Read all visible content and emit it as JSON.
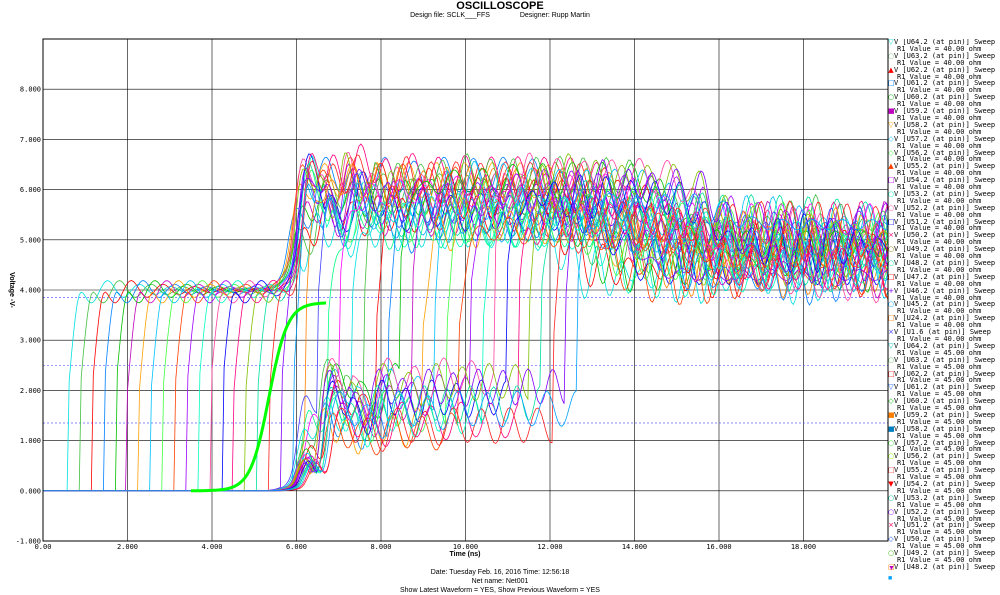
{
  "header": {
    "title": "OSCILLOSCOPE",
    "design_file": "Design file: SCLK___FFS",
    "designer": "Designer: Rupp Martin"
  },
  "footer": {
    "date": "Date: Tuesday Feb. 16, 2016   Time: 12:56:18",
    "net": "Net name: Net001",
    "options": "Show Latest Waveform = YES,   Show Previous Waveform = YES"
  },
  "chart_data": {
    "type": "line",
    "xlabel": "Time (ns)",
    "ylabel": "Voltage -V-",
    "xlim": [
      0,
      20
    ],
    "ylim": [
      -1,
      9
    ],
    "x_ticks": [
      "0.00",
      "2.000",
      "4.000",
      "6.000",
      "8.000",
      "10.000",
      "12.000",
      "14.000",
      "16.000",
      "18.000"
    ],
    "y_ticks": [
      "-1.000",
      "0.000",
      "1.000",
      "2.000",
      "3.000",
      "4.000",
      "5.000",
      "6.000",
      "7.000",
      "8.000"
    ],
    "grid": true,
    "legend_position": "right",
    "reference_levels_dashed": [
      3.85,
      2.5,
      1.35
    ],
    "legend": [
      {
        "name": "V [U64.2 (at pin)] Sweep",
        "sub": "R1 Value = 40.00 ohm",
        "marker": "▽",
        "color": "#00e0e0"
      },
      {
        "name": "V [U63.2 (at pin)] Sweep",
        "sub": "R1 Value = 40.00 ohm",
        "marker": "○",
        "color": "#80c080"
      },
      {
        "name": "V [U62.2 (at pin)] Sweep",
        "sub": "R1 Value = 40.00 ohm",
        "marker": "▲",
        "color": "#ff0000"
      },
      {
        "name": "V [U61.2 (at pin)] Sweep",
        "sub": "R1 Value = 40.00 ohm",
        "marker": "□",
        "color": "#0080ff"
      },
      {
        "name": "V [U60.2 (at pin)] Sweep",
        "sub": "R1 Value = 40.00 ohm",
        "marker": "○",
        "color": "#00c000"
      },
      {
        "name": "V [U59.2 (at pin)] Sweep",
        "sub": "R1 Value = 40.00 ohm",
        "marker": "■",
        "color": "#c000c0"
      },
      {
        "name": "V [U58.2 (at pin)] Sweep",
        "sub": "R1 Value = 40.00 ohm",
        "marker": "▽",
        "color": "#ffa000"
      },
      {
        "name": "V [U57.2 (at pin)] Sweep",
        "sub": "R1 Value = 40.00 ohm",
        "marker": "◇",
        "color": "#00c0ff"
      },
      {
        "name": "V [U56.2 (at pin)] Sweep",
        "sub": "R1 Value = 40.00 ohm",
        "marker": "◇",
        "color": "#40ff40"
      },
      {
        "name": "V [U55.2 (at pin)] Sweep",
        "sub": "R1 Value = 40.00 ohm",
        "marker": "▲",
        "color": "#ff4000"
      },
      {
        "name": "V [U54.2 (at pin)] Sweep",
        "sub": "R1 Value = 40.00 ohm",
        "marker": "□",
        "color": "#c000ff"
      },
      {
        "name": "V [U53.2 (at pin)] Sweep",
        "sub": "R1 Value = 40.00 ohm",
        "marker": "○",
        "color": "#00ffc0"
      },
      {
        "name": "V [U52.2 (at pin)] Sweep",
        "sub": "R1 Value = 40.00 ohm",
        "marker": "○",
        "color": "#ff40a0"
      },
      {
        "name": "V [U51.2 (at pin)] Sweep",
        "sub": "R1 Value = 40.00 ohm",
        "marker": "□",
        "color": "#0000ff"
      },
      {
        "name": "V [U50.2 (at pin)] Sweep",
        "sub": "R1 Value = 40.00 ohm",
        "marker": "×",
        "color": "#ff0080"
      },
      {
        "name": "V [U49.2 (at pin)] Sweep",
        "sub": "R1 Value = 40.00 ohm",
        "marker": "○",
        "color": "#808000"
      },
      {
        "name": "V [U48.2 (at pin)] Sweep",
        "sub": "R1 Value = 40.00 ohm",
        "marker": "○",
        "color": "#00e0a0"
      },
      {
        "name": "V [U47.2 (at pin)] Sweep",
        "sub": "R1 Value = 40.00 ohm",
        "marker": "□",
        "color": "#ff0000"
      },
      {
        "name": "V [U46.2 (at pin)] Sweep",
        "sub": "R1 Value = 40.00 ohm",
        "marker": "+",
        "color": "#8000ff"
      },
      {
        "name": "V [U45.2 (at pin)] Sweep",
        "sub": "R1 Value = 40.00 ohm",
        "marker": "○",
        "color": "#00a0ff"
      },
      {
        "name": "V [U24.2 (at pin)] Sweep",
        "sub": "R1 Value = 40.00 ohm",
        "marker": "□",
        "color": "#ff8000"
      },
      {
        "name": "V [U1.6 (at pin)] Sweep",
        "sub": "R1 Value = 40.00 ohm",
        "marker": "×",
        "color": "#4040ff"
      },
      {
        "name": "V [U64.2 (at pin)] Sweep",
        "sub": "R1 Value = 45.00 ohm",
        "marker": "▽",
        "color": "#00c0c0"
      },
      {
        "name": "V [U63.2 (at pin)] Sweep",
        "sub": "R1 Value = 45.00 ohm",
        "marker": "○",
        "color": "#60c060"
      },
      {
        "name": "V [U62.2 (at pin)] Sweep",
        "sub": "R1 Value = 45.00 ohm",
        "marker": "□",
        "color": "#ff2020"
      },
      {
        "name": "V [U61.2 (at pin)] Sweep",
        "sub": "R1 Value = 45.00 ohm",
        "marker": "▽",
        "color": "#0060ff"
      },
      {
        "name": "V [U60.2 (at pin)] Sweep",
        "sub": "R1 Value = 45.00 ohm",
        "marker": "◇",
        "color": "#00c000"
      },
      {
        "name": "V [U59.2 (at pin)] Sweep",
        "sub": "R1 Value = 45.00 ohm",
        "marker": "■",
        "color": "#ff8000"
      },
      {
        "name": "V [U58.2 (at pin)] Sweep",
        "sub": "R1 Value = 45.00 ohm",
        "marker": "■",
        "color": "#0080c0"
      },
      {
        "name": "V [U57.2 (at pin)] Sweep",
        "sub": "R1 Value = 45.00 ohm",
        "marker": "○",
        "color": "#40e040"
      },
      {
        "name": "V [U56.2 (at pin)] Sweep",
        "sub": "R1 Value = 45.00 ohm",
        "marker": "○",
        "color": "#80ff00"
      },
      {
        "name": "V [U55.2 (at pin)] Sweep",
        "sub": "R1 Value = 45.00 ohm",
        "marker": "□",
        "color": "#ff4040"
      },
      {
        "name": "V [U54.2 (at pin)] Sweep",
        "sub": "R1 Value = 45.00 ohm",
        "marker": "▼",
        "color": "#ff0000"
      },
      {
        "name": "V [U53.2 (at pin)] Sweep",
        "sub": "R1 Value = 45.00 ohm",
        "marker": "○",
        "color": "#00c0a0"
      },
      {
        "name": "V [U52.2 (at pin)] Sweep",
        "sub": "R1 Value = 45.00 ohm",
        "marker": "○",
        "color": "#a000ff"
      },
      {
        "name": "V [U51.2 (at pin)] Sweep",
        "sub": "R1 Value = 45.00 ohm",
        "marker": "×",
        "color": "#ff0060"
      },
      {
        "name": "V [U50.2 (at pin)] Sweep",
        "sub": "R1 Value = 45.00 ohm",
        "marker": "◇",
        "color": "#0040ff"
      },
      {
        "name": "V [U49.2 (at pin)] Sweep",
        "sub": "R1 Value = 45.00 ohm",
        "marker": "○",
        "color": "#40c000"
      },
      {
        "name": "V [U48.2 (at pin)] Sweep",
        "sub": "",
        "marker": "□",
        "color": "#ff8000"
      }
    ],
    "legend_tail_markers": [
      {
        "marker": "▼",
        "color": "#c000c0"
      },
      {
        "marker": "■",
        "color": "#00a0ff"
      }
    ],
    "series_model": {
      "count": 44,
      "rise_start_first": 0.6,
      "rise_start_spacing": 0.28,
      "early_plateau": 4.0,
      "bundle_rise_time": 5.8,
      "bundle_peak_range": [
        4.6,
        7.05
      ],
      "mid_plateau_range": [
        5.2,
        6.3
      ],
      "final_level_range": [
        4.3,
        5.3
      ],
      "final_transition_time": 15.8
    }
  }
}
